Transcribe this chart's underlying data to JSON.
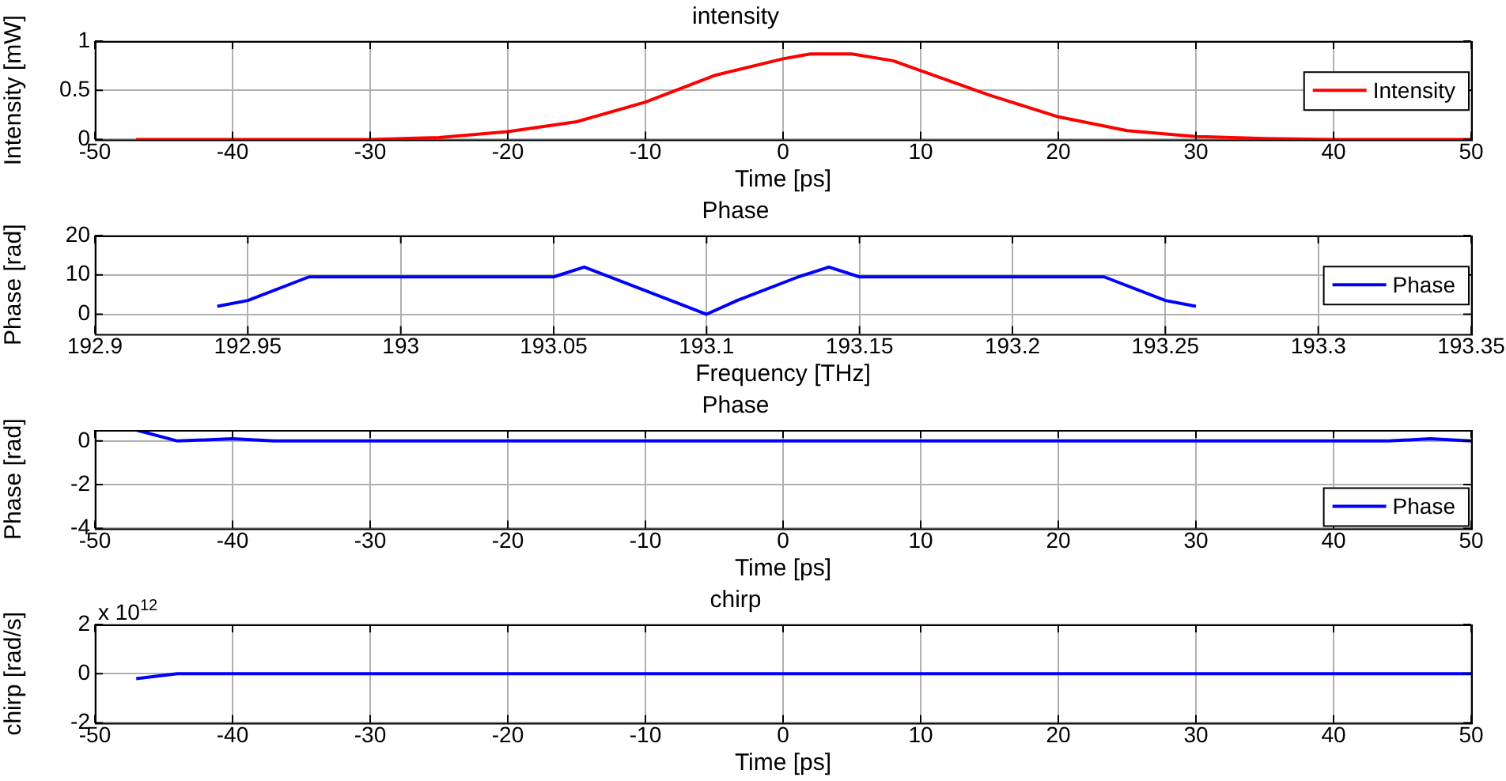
{
  "chart_data": [
    {
      "type": "line",
      "title": "intensity",
      "xlabel": "Time [ps]",
      "ylabel": "Intensity [mW]",
      "xlim": [
        -50,
        50
      ],
      "xticks": [
        -50,
        -40,
        -30,
        -20,
        -10,
        0,
        10,
        20,
        30,
        40,
        50
      ],
      "ylim": [
        0,
        1
      ],
      "yticks": [
        0,
        0.5,
        1
      ],
      "grid": true,
      "legend": "right",
      "series": [
        {
          "name": "Intensity",
          "color": "#ff0000",
          "x": [
            -47,
            -35,
            -30,
            -25,
            -20,
            -15,
            -10,
            -5,
            0,
            2,
            5,
            8,
            10,
            15,
            20,
            25,
            30,
            35,
            40,
            50
          ],
          "values": [
            0,
            0,
            0,
            0.02,
            0.08,
            0.18,
            0.38,
            0.65,
            0.82,
            0.87,
            0.87,
            0.8,
            0.7,
            0.45,
            0.23,
            0.09,
            0.03,
            0.01,
            0,
            0
          ]
        }
      ]
    },
    {
      "type": "line",
      "title": "Phase",
      "xlabel": "Frequency [THz]",
      "ylabel": "Phase [rad]",
      "xlim": [
        192.9,
        193.35
      ],
      "xticks": [
        192.9,
        192.95,
        193,
        193.05,
        193.1,
        193.15,
        193.2,
        193.25,
        193.3,
        193.35
      ],
      "ylim": [
        -5,
        20
      ],
      "yticks": [
        0,
        10,
        20
      ],
      "grid": true,
      "legend": "right",
      "series": [
        {
          "name": "Phase",
          "color": "#0000ff",
          "x": [
            192.94,
            192.95,
            192.97,
            193.05,
            193.06,
            193.09,
            193.1,
            193.11,
            193.13,
            193.14,
            193.15,
            193.23,
            193.25,
            193.26
          ],
          "values": [
            2,
            3.5,
            9.5,
            9.5,
            12,
            3,
            0,
            3.5,
            9.5,
            12,
            9.5,
            9.5,
            3.5,
            2
          ]
        }
      ]
    },
    {
      "type": "line",
      "title": "Phase",
      "xlabel": "Time [ps]",
      "ylabel": "Phase [rad]",
      "xlim": [
        -50,
        50
      ],
      "xticks": [
        -50,
        -40,
        -30,
        -20,
        -10,
        0,
        10,
        20,
        30,
        40,
        50
      ],
      "ylim": [
        -4,
        0.5
      ],
      "yticks": [
        -4,
        -2,
        0
      ],
      "grid": true,
      "legend": "bottom right",
      "series": [
        {
          "name": "Phase",
          "color": "#0000ff",
          "x": [
            -47,
            -44,
            -40,
            -37,
            0,
            40,
            44,
            47,
            50
          ],
          "values": [
            0.5,
            0,
            0.1,
            0,
            0,
            0,
            0,
            0.1,
            0
          ]
        }
      ]
    },
    {
      "type": "line",
      "title": "chirp",
      "xlabel": "Time [ps]",
      "ylabel": "chirp [rad/s]",
      "xlim": [
        -50,
        50
      ],
      "xticks": [
        -50,
        -40,
        -30,
        -20,
        -10,
        0,
        10,
        20,
        30,
        40,
        50
      ],
      "ylim": [
        -2,
        2
      ],
      "yticks": [
        -2,
        0,
        2
      ],
      "grid": true,
      "annotations": [
        "x 10$^{12}$"
      ],
      "series": [
        {
          "color": "#0000ff",
          "x": [
            -47,
            -44,
            0,
            50
          ],
          "values": [
            -0.2,
            0,
            0,
            0
          ]
        }
      ]
    }
  ]
}
